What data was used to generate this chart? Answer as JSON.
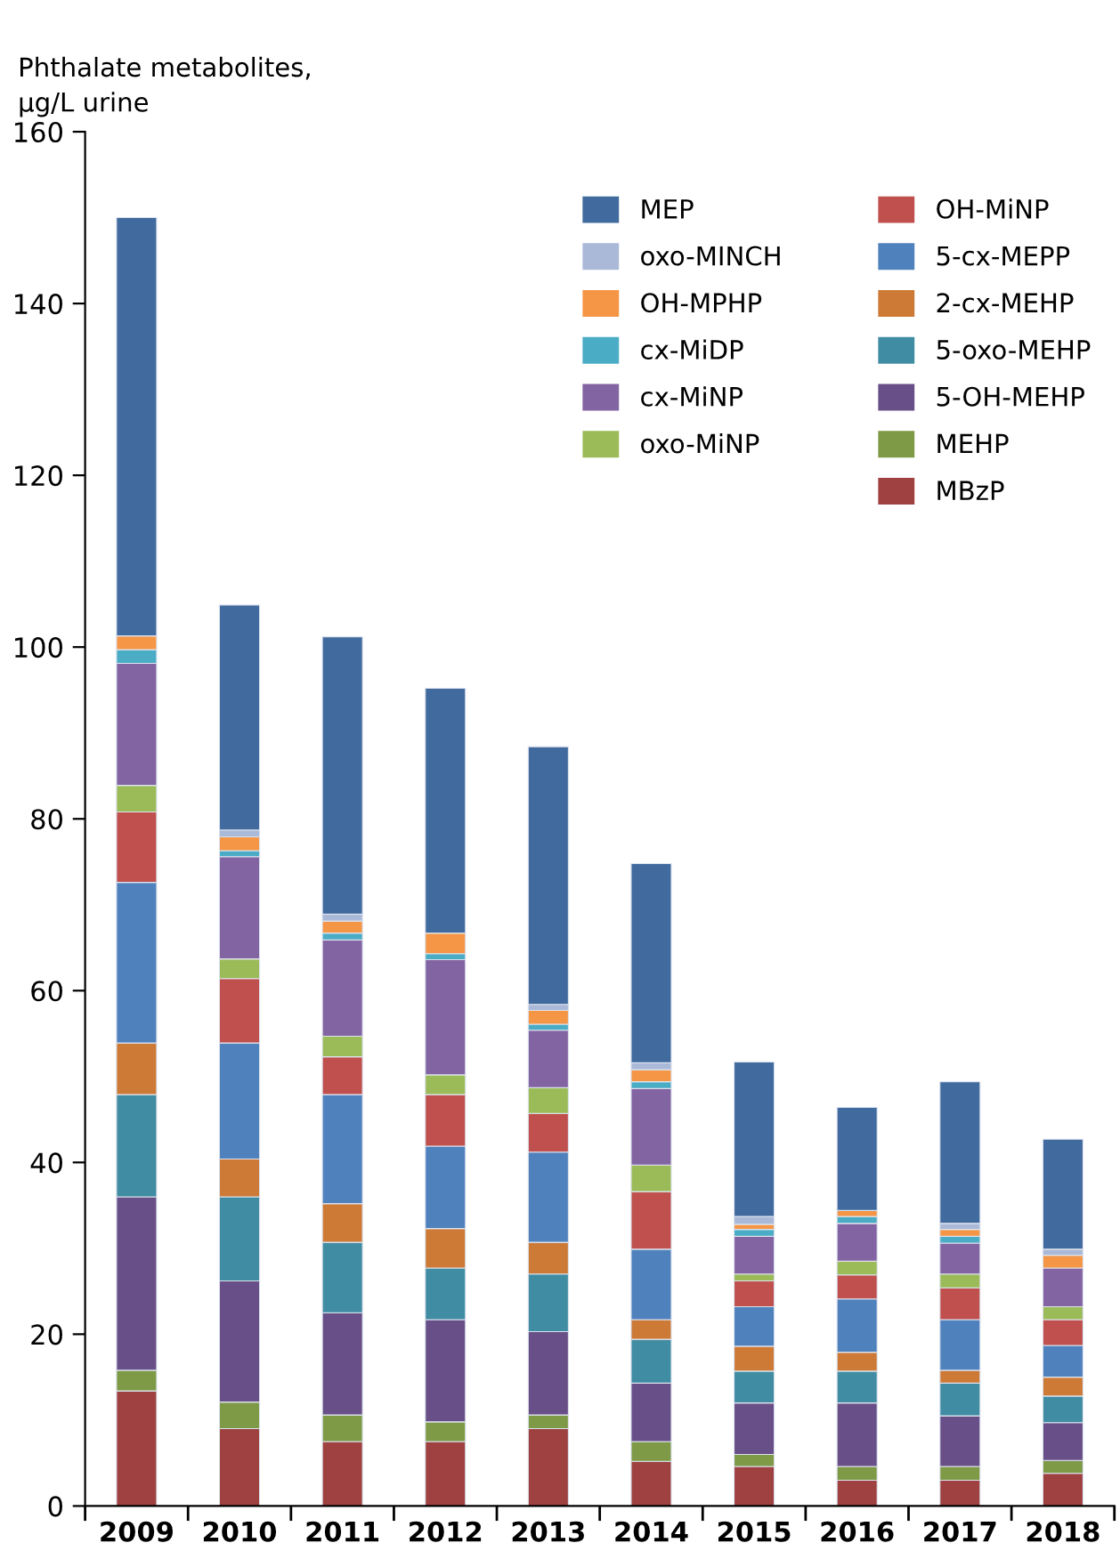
{
  "chart_data": {
    "type": "bar",
    "stacked": true,
    "ylabel": "Phthalate metabolites,\nµg/L urine",
    "categories": [
      "2009",
      "2010",
      "2011",
      "2012",
      "2013",
      "2014",
      "2015",
      "2016",
      "2017",
      "2018"
    ],
    "ylim": [
      0,
      160
    ],
    "yticks": [
      0,
      20,
      40,
      60,
      80,
      100,
      120,
      140,
      160
    ],
    "grid": false,
    "legend": "top right",
    "series": [
      {
        "name": "MBzP",
        "color": "#9e4140",
        "values": [
          13.4,
          9.0,
          7.5,
          7.5,
          9.0,
          5.2,
          4.6,
          3.0,
          3.0,
          3.8
        ]
      },
      {
        "name": "MEHP",
        "color": "#7e9a47",
        "values": [
          2.4,
          3.1,
          3.1,
          2.3,
          1.6,
          2.3,
          1.4,
          1.6,
          1.6,
          1.5
        ]
      },
      {
        "name": "5-OH-MEHP",
        "color": "#684f87",
        "values": [
          20.2,
          14.1,
          11.9,
          11.9,
          9.7,
          6.8,
          6.0,
          7.4,
          5.9,
          4.4
        ]
      },
      {
        "name": "5-oxo-MEHP",
        "color": "#3f8ca3",
        "values": [
          11.9,
          9.8,
          8.2,
          6.0,
          6.7,
          5.1,
          3.7,
          3.7,
          3.8,
          3.1
        ]
      },
      {
        "name": "2-cx-MEHP",
        "color": "#cd7a37",
        "values": [
          6.0,
          4.4,
          4.5,
          4.6,
          3.7,
          2.3,
          2.9,
          2.2,
          1.5,
          2.2
        ]
      },
      {
        "name": "5-cx-MEPP",
        "color": "#4f81bd",
        "values": [
          18.7,
          13.5,
          12.7,
          9.6,
          10.5,
          8.2,
          4.6,
          6.2,
          5.9,
          3.7
        ]
      },
      {
        "name": "OH-MiNP",
        "color": "#c0504d",
        "values": [
          8.2,
          7.5,
          4.4,
          6.0,
          4.5,
          6.7,
          3.0,
          2.8,
          3.7,
          3.0
        ]
      },
      {
        "name": "oxo-MiNP",
        "color": "#9bbb59",
        "values": [
          3.1,
          2.3,
          2.4,
          2.3,
          3.0,
          3.1,
          0.8,
          1.6,
          1.6,
          1.5
        ]
      },
      {
        "name": "cx-MiNP",
        "color": "#8364a2",
        "values": [
          14.2,
          11.9,
          11.2,
          13.4,
          6.7,
          8.9,
          4.4,
          4.4,
          3.6,
          4.5
        ]
      },
      {
        "name": "cx-MiDP",
        "color": "#4bacc6",
        "values": [
          1.6,
          0.7,
          0.8,
          0.7,
          0.7,
          0.8,
          0.8,
          0.8,
          0.8,
          null
        ]
      },
      {
        "name": "OH-MPHP",
        "color": "#f59647",
        "values": [
          1.6,
          1.6,
          1.4,
          2.4,
          1.6,
          1.4,
          0.6,
          0.7,
          0.8,
          1.5
        ]
      },
      {
        "name": "oxo-MINCH",
        "color": "#aab9d8",
        "values": [
          null,
          0.8,
          0.8,
          null,
          0.7,
          0.8,
          0.9,
          null,
          0.7,
          0.7
        ]
      },
      {
        "name": "MEP",
        "color": "#416a9e",
        "values": [
          48.7,
          26.2,
          32.3,
          28.5,
          30.0,
          23.2,
          18.0,
          12.0,
          16.5,
          12.8
        ]
      }
    ]
  }
}
